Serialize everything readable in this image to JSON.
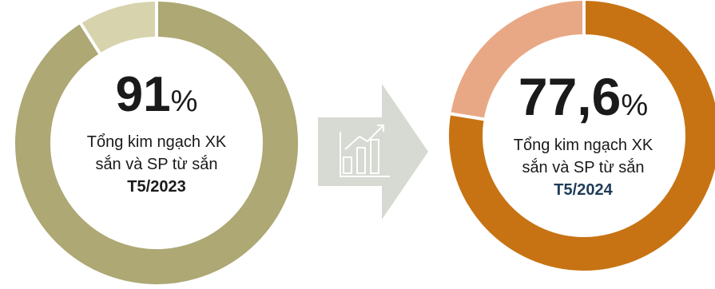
{
  "chart_data": [
    {
      "type": "pie",
      "style": "donut",
      "slices": [
        {
          "label": "Tổng kim ngạch XK sắn và SP từ sắn",
          "value": 91,
          "color": "#ada874"
        },
        {
          "label": "",
          "value": 9,
          "color": "#d6d3ad"
        }
      ],
      "center": {
        "value": "91",
        "unit": "%",
        "line1": "Tổng kim ngạch XK",
        "line2": "sắn và SP từ sắn",
        "period": "T5/2023"
      }
    },
    {
      "type": "pie",
      "style": "donut",
      "slices": [
        {
          "label": "Tổng kim ngạch XK sắn và SP từ sắn",
          "value": 77.6,
          "color": "#c77314"
        },
        {
          "label": "",
          "value": 22.4,
          "color": "#e9a885"
        }
      ],
      "center": {
        "value": "77,6",
        "unit": "%",
        "line1": "Tổng kim ngạch XK",
        "line2": "sắn và SP từ sắn",
        "period": "T5/2024"
      }
    }
  ],
  "arrow": {
    "icon": "bar-chart-growth-icon",
    "color": "#d6dad3",
    "icon_color": "#ffffff"
  }
}
